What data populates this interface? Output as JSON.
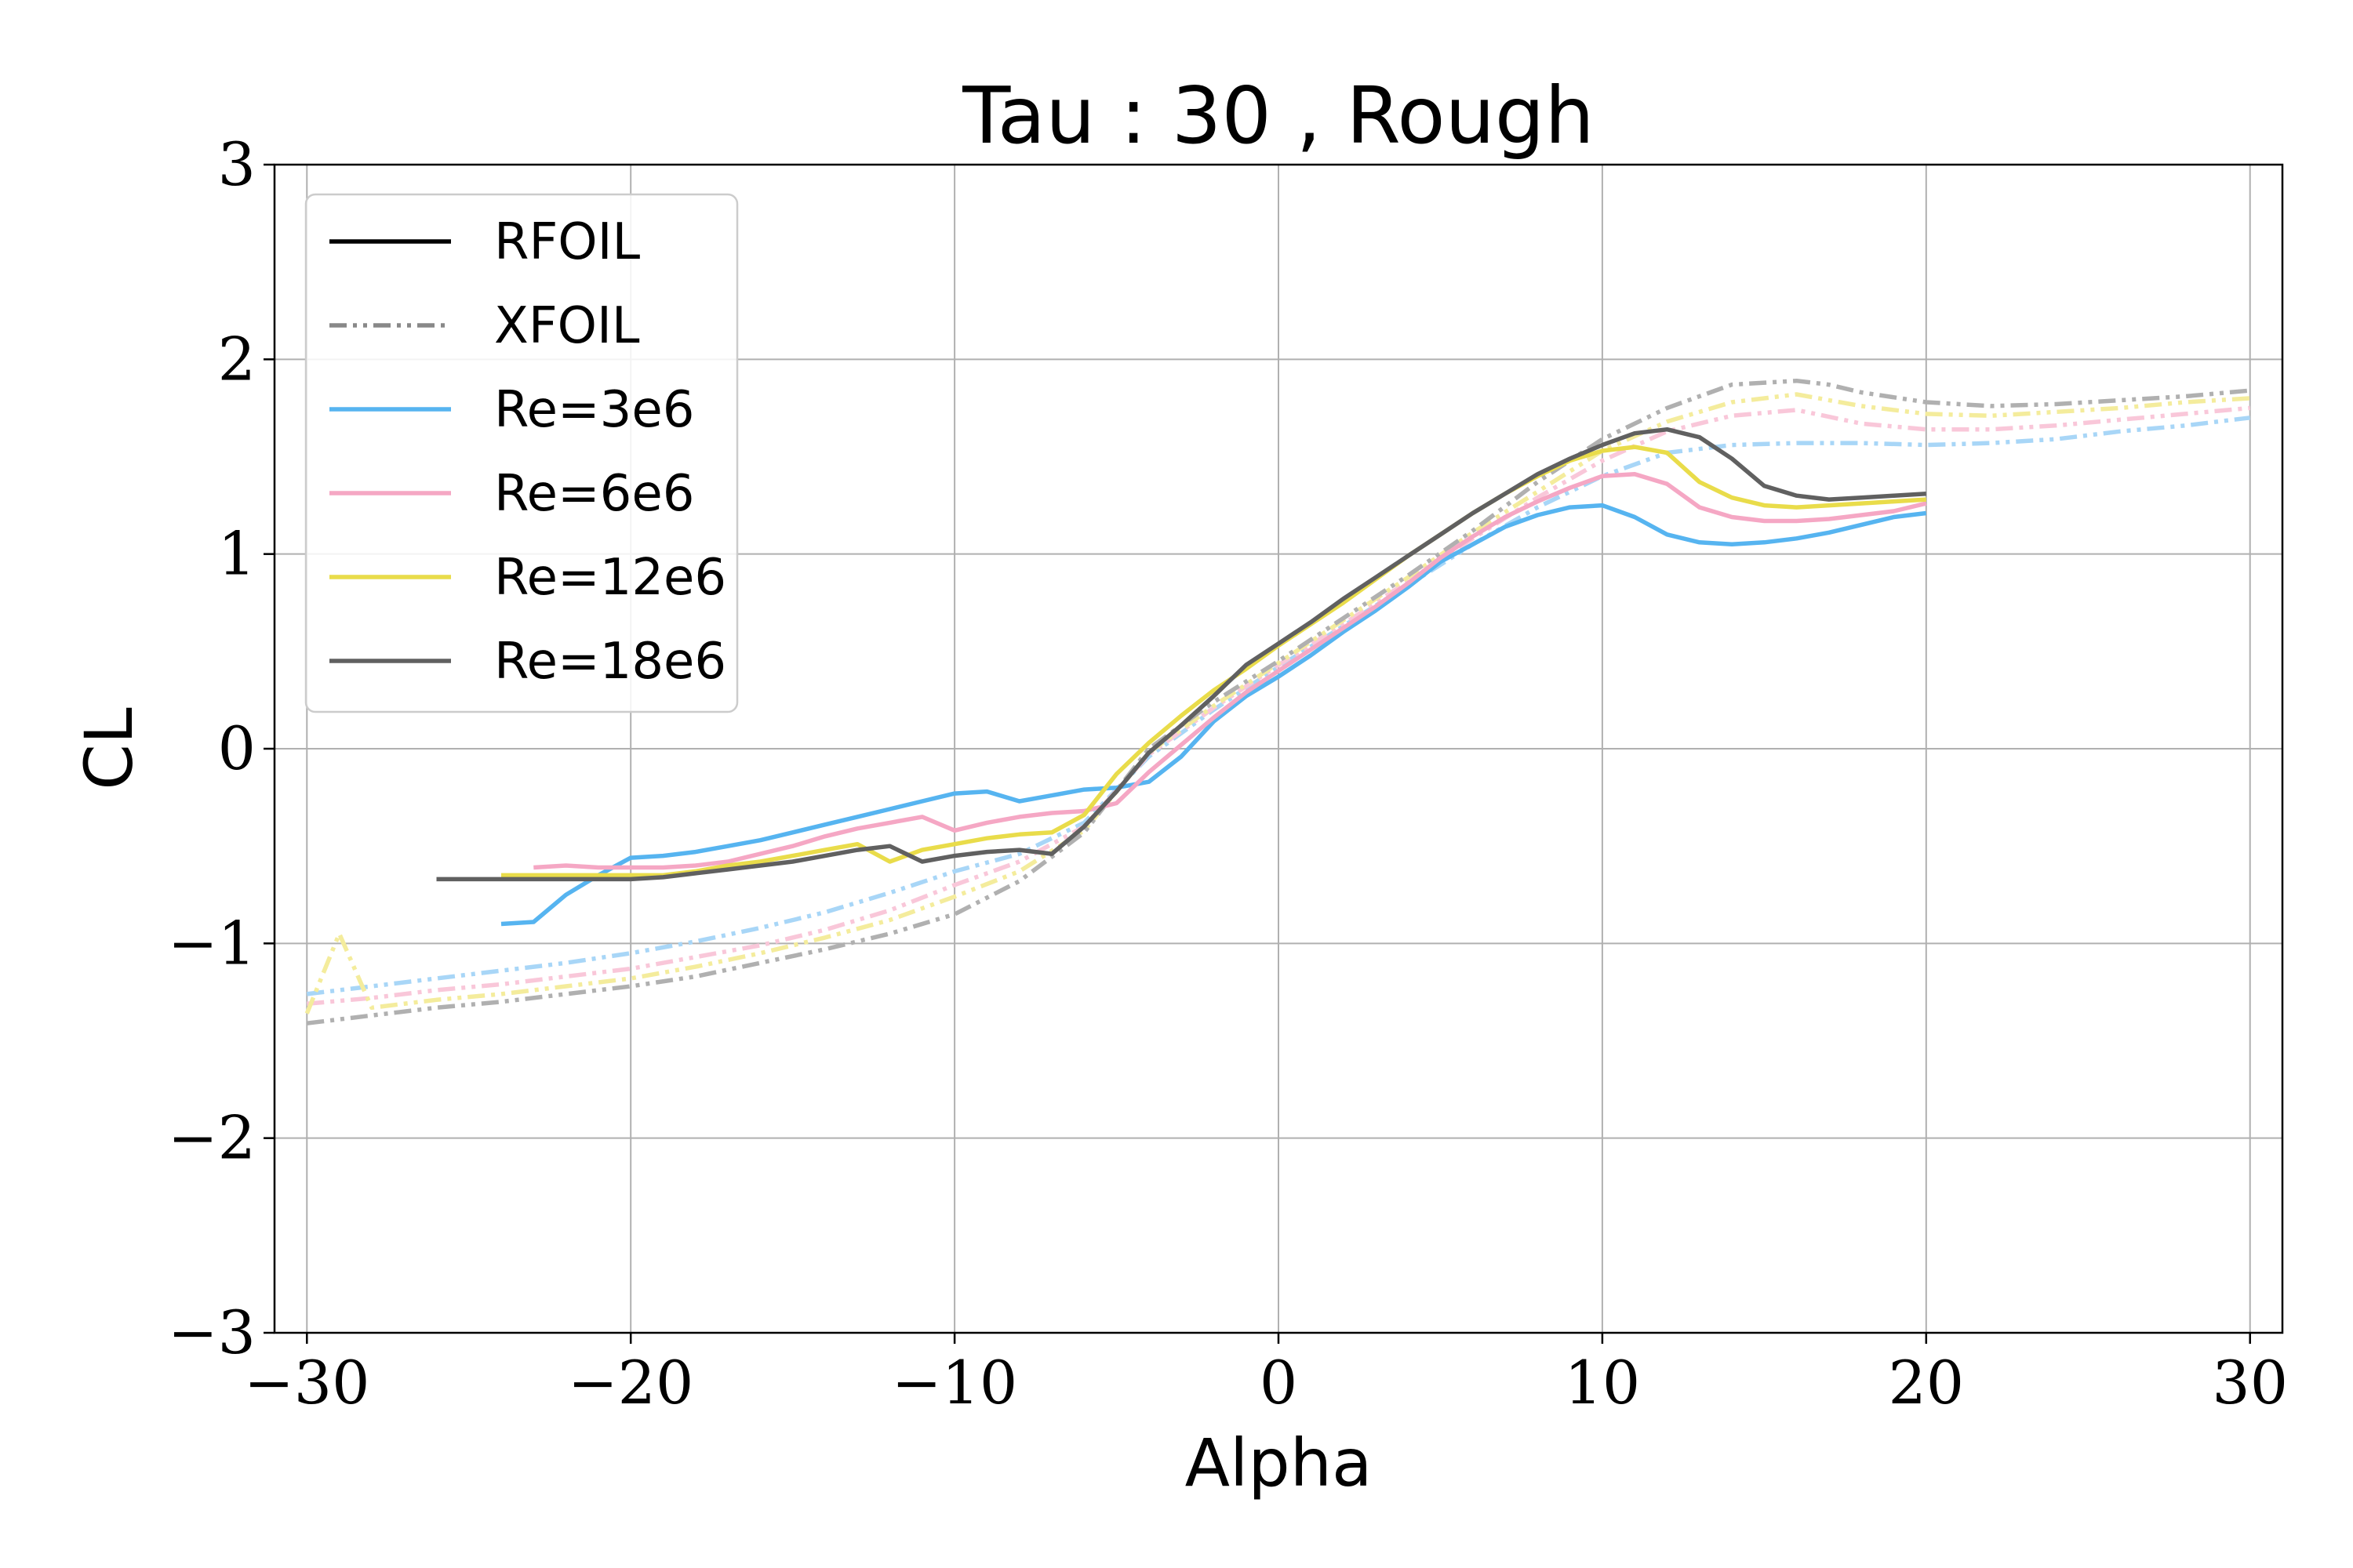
{
  "chart_data": {
    "type": "line",
    "title": "Tau : 30 , Rough",
    "xlabel": "Alpha",
    "ylabel": "CL",
    "xlim": [
      -31,
      31
    ],
    "ylim": [
      -3,
      3
    ],
    "xticks": [
      -30,
      -20,
      -10,
      0,
      10,
      20,
      30
    ],
    "yticks": [
      -3,
      -2,
      -1,
      0,
      1,
      2,
      3
    ],
    "xtick_labels": [
      "−30",
      "−20",
      "−10",
      "0",
      "10",
      "20",
      "30"
    ],
    "ytick_labels": [
      "−3",
      "−2",
      "−1",
      "0",
      "1",
      "2",
      "3"
    ],
    "grid": true,
    "legend_position": "top-left",
    "legend": {
      "style_entries": [
        {
          "label": "RFOIL",
          "color": "#000000",
          "dash": "solid"
        },
        {
          "label": "XFOIL",
          "color": "#888888",
          "dash": "dashdotdot"
        }
      ],
      "re_entries": [
        {
          "label": "Re=3e6",
          "color": "#56b4f0"
        },
        {
          "label": "Re=6e6",
          "color": "#f5a7c4"
        },
        {
          "label": "Re=12e6",
          "color": "#e9dc4a"
        },
        {
          "label": "Re=18e6",
          "color": "#606060"
        }
      ]
    },
    "series": [
      {
        "name": "Re=3e6",
        "method": "RFOIL",
        "color": "#56b4f0",
        "x": [
          -24,
          -23,
          -22,
          -21,
          -20,
          -19,
          -18,
          -17,
          -16,
          -15,
          -14,
          -13,
          -12,
          -11,
          -10,
          -9,
          -8,
          -7,
          -6,
          -5,
          -4,
          -3,
          -2,
          -1,
          0,
          1,
          2,
          3,
          4,
          5,
          6,
          7,
          8,
          9,
          10,
          11,
          12,
          13,
          14,
          15,
          16,
          17,
          18,
          19,
          20
        ],
        "y": [
          -0.9,
          -0.89,
          -0.75,
          -0.65,
          -0.56,
          -0.55,
          -0.53,
          -0.5,
          -0.47,
          -0.43,
          -0.39,
          -0.35,
          -0.31,
          -0.27,
          -0.23,
          -0.22,
          -0.27,
          -0.24,
          -0.21,
          -0.2,
          -0.17,
          -0.04,
          0.14,
          0.27,
          0.37,
          0.48,
          0.6,
          0.71,
          0.83,
          0.96,
          1.05,
          1.14,
          1.2,
          1.24,
          1.25,
          1.19,
          1.1,
          1.06,
          1.05,
          1.06,
          1.08,
          1.11,
          1.15,
          1.19,
          1.21
        ]
      },
      {
        "name": "Re=6e6",
        "method": "RFOIL",
        "color": "#f5a7c4",
        "x": [
          -23,
          -22,
          -21,
          -20,
          -19,
          -18,
          -17,
          -16,
          -15,
          -14,
          -13,
          -12,
          -11,
          -10,
          -9,
          -8,
          -7,
          -6,
          -5,
          -4,
          -3,
          -2,
          -1,
          0,
          1,
          2,
          3,
          4,
          5,
          6,
          7,
          8,
          9,
          10,
          11,
          12,
          13,
          14,
          15,
          16,
          17,
          18,
          19,
          20
        ],
        "y": [
          -0.61,
          -0.6,
          -0.61,
          -0.61,
          -0.61,
          -0.6,
          -0.58,
          -0.54,
          -0.5,
          -0.45,
          -0.41,
          -0.38,
          -0.35,
          -0.42,
          -0.38,
          -0.35,
          -0.33,
          -0.32,
          -0.28,
          -0.12,
          0.02,
          0.16,
          0.29,
          0.4,
          0.51,
          0.62,
          0.73,
          0.85,
          0.98,
          1.09,
          1.19,
          1.27,
          1.34,
          1.4,
          1.41,
          1.36,
          1.24,
          1.19,
          1.17,
          1.17,
          1.18,
          1.2,
          1.22,
          1.26
        ]
      },
      {
        "name": "Re=12e6",
        "method": "RFOIL",
        "color": "#e9dc4a",
        "x": [
          -24,
          -23,
          -22,
          -21,
          -20,
          -19,
          -18,
          -17,
          -16,
          -15,
          -14,
          -13,
          -12,
          -11,
          -10,
          -9,
          -8,
          -7,
          -6,
          -5,
          -4,
          -3,
          -2,
          -1,
          0,
          1,
          2,
          3,
          4,
          5,
          6,
          7,
          8,
          9,
          10,
          11,
          12,
          13,
          14,
          15,
          16,
          17,
          18,
          19,
          20
        ],
        "y": [
          -0.65,
          -0.65,
          -0.65,
          -0.65,
          -0.65,
          -0.65,
          -0.63,
          -0.6,
          -0.58,
          -0.55,
          -0.52,
          -0.49,
          -0.58,
          -0.52,
          -0.49,
          -0.46,
          -0.44,
          -0.43,
          -0.34,
          -0.13,
          0.03,
          0.17,
          0.3,
          0.41,
          0.53,
          0.64,
          0.75,
          0.87,
          0.99,
          1.1,
          1.21,
          1.31,
          1.4,
          1.48,
          1.53,
          1.55,
          1.52,
          1.37,
          1.29,
          1.25,
          1.24,
          1.25,
          1.26,
          1.27,
          1.28
        ]
      },
      {
        "name": "Re=18e6",
        "method": "RFOIL",
        "color": "#606060",
        "x": [
          -26,
          -25,
          -24,
          -23,
          -22,
          -21,
          -20,
          -19,
          -18,
          -17,
          -16,
          -15,
          -14,
          -13,
          -12,
          -11,
          -10,
          -9,
          -8,
          -7,
          -6,
          -5,
          -4,
          -3,
          -2,
          -1,
          0,
          1,
          2,
          3,
          4,
          5,
          6,
          7,
          8,
          9,
          10,
          11,
          12,
          13,
          14,
          15,
          16,
          17,
          18,
          19,
          20
        ],
        "y": [
          -0.67,
          -0.67,
          -0.67,
          -0.67,
          -0.67,
          -0.67,
          -0.67,
          -0.66,
          -0.64,
          -0.62,
          -0.6,
          -0.58,
          -0.55,
          -0.52,
          -0.5,
          -0.58,
          -0.55,
          -0.53,
          -0.52,
          -0.54,
          -0.4,
          -0.22,
          -0.02,
          0.12,
          0.27,
          0.43,
          0.54,
          0.65,
          0.77,
          0.88,
          0.99,
          1.1,
          1.21,
          1.31,
          1.41,
          1.49,
          1.56,
          1.62,
          1.64,
          1.6,
          1.49,
          1.35,
          1.3,
          1.28,
          1.29,
          1.3,
          1.31
        ]
      },
      {
        "name": "Re=3e6",
        "method": "XFOIL",
        "color": "#a8d6f7",
        "x": [
          -30,
          -28,
          -26,
          -24,
          -22,
          -20,
          -18,
          -16,
          -14,
          -12,
          -10,
          -8,
          -6,
          -4,
          -2,
          0,
          2,
          4,
          6,
          8,
          10,
          12,
          14,
          16,
          18,
          20,
          22,
          24,
          26,
          28,
          30
        ],
        "y": [
          -1.26,
          -1.22,
          -1.18,
          -1.14,
          -1.1,
          -1.05,
          -0.99,
          -0.92,
          -0.84,
          -0.74,
          -0.63,
          -0.54,
          -0.38,
          -0.04,
          0.2,
          0.42,
          0.63,
          0.84,
          1.05,
          1.24,
          1.4,
          1.52,
          1.56,
          1.57,
          1.57,
          1.56,
          1.57,
          1.59,
          1.63,
          1.66,
          1.7
        ]
      },
      {
        "name": "Re=6e6",
        "method": "XFOIL",
        "color": "#f9c7d9",
        "x": [
          -30,
          -28,
          -26,
          -24,
          -22,
          -20,
          -18,
          -16,
          -14,
          -12,
          -10,
          -8,
          -6,
          -4,
          -2,
          0,
          2,
          4,
          6,
          8,
          10,
          12,
          14,
          16,
          18,
          20,
          22,
          24,
          26,
          28,
          30
        ],
        "y": [
          -1.31,
          -1.28,
          -1.24,
          -1.21,
          -1.17,
          -1.13,
          -1.07,
          -1.01,
          -0.93,
          -0.83,
          -0.7,
          -0.58,
          -0.4,
          -0.03,
          0.21,
          0.43,
          0.64,
          0.86,
          1.08,
          1.29,
          1.48,
          1.63,
          1.71,
          1.74,
          1.67,
          1.64,
          1.64,
          1.66,
          1.69,
          1.72,
          1.75
        ]
      },
      {
        "name": "Re=12e6",
        "method": "XFOIL",
        "color": "#f4ec9c",
        "x": [
          -30,
          -29,
          -28,
          -26,
          -24,
          -22,
          -20,
          -18,
          -16,
          -14,
          -12,
          -10,
          -8,
          -6,
          -4,
          -2,
          0,
          2,
          4,
          6,
          8,
          10,
          12,
          14,
          16,
          18,
          20,
          22,
          24,
          26,
          28,
          30
        ],
        "y": [
          -1.36,
          -0.95,
          -1.33,
          -1.29,
          -1.26,
          -1.22,
          -1.18,
          -1.12,
          -1.05,
          -0.97,
          -0.88,
          -0.76,
          -0.63,
          -0.42,
          -0.02,
          0.22,
          0.44,
          0.66,
          0.88,
          1.11,
          1.32,
          1.53,
          1.68,
          1.78,
          1.82,
          1.76,
          1.72,
          1.71,
          1.73,
          1.75,
          1.78,
          1.8
        ]
      },
      {
        "name": "Re=18e6",
        "method": "XFOIL",
        "color": "#b0b0b0",
        "x": [
          -30,
          -28,
          -26,
          -24,
          -22,
          -20,
          -18,
          -16,
          -14,
          -12,
          -10,
          -8,
          -6,
          -4,
          -2,
          0,
          2,
          4,
          6,
          8,
          10,
          12,
          14,
          16,
          17,
          18,
          20,
          22,
          24,
          26,
          28,
          30
        ],
        "y": [
          -1.41,
          -1.37,
          -1.33,
          -1.3,
          -1.26,
          -1.22,
          -1.17,
          -1.1,
          -1.03,
          -0.95,
          -0.85,
          -0.68,
          -0.43,
          0.0,
          0.24,
          0.45,
          0.67,
          0.89,
          1.12,
          1.37,
          1.59,
          1.75,
          1.87,
          1.89,
          1.87,
          1.83,
          1.78,
          1.76,
          1.77,
          1.79,
          1.81,
          1.84
        ]
      }
    ]
  }
}
